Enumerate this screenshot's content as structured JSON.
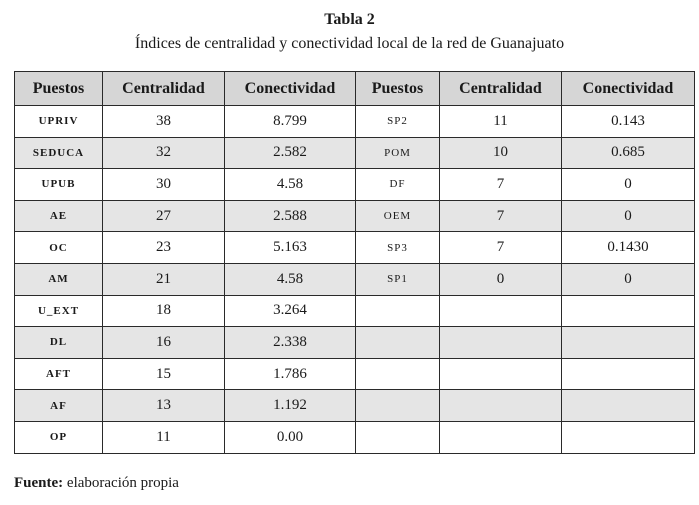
{
  "caption": {
    "title": "Tabla 2",
    "subtitle": "Índices de centralidad y conectividad local de la red de Guanajuato"
  },
  "table": {
    "headers": [
      "Puestos",
      "Centralidad",
      "Conectividad",
      "Puestos",
      "Centralidad",
      "Conectividad"
    ],
    "rows": [
      [
        "UPRIV",
        "38",
        "8.799",
        "SP2",
        "11",
        "0.143"
      ],
      [
        "SEDUCA",
        "32",
        "2.582",
        "POM",
        "10",
        "0.685"
      ],
      [
        "UPUB",
        "30",
        "4.58",
        "DF",
        "7",
        "0"
      ],
      [
        "AE",
        "27",
        "2.588",
        "OEM",
        "7",
        "0"
      ],
      [
        "OC",
        "23",
        "5.163",
        "SP3",
        "7",
        "0.1430"
      ],
      [
        "AM",
        "21",
        "4.58",
        "SP1",
        "0",
        "0"
      ],
      [
        "U_EXT",
        "18",
        "3.264",
        "",
        "",
        ""
      ],
      [
        "DL",
        "16",
        "2.338",
        "",
        "",
        ""
      ],
      [
        "AFT",
        "15",
        "1.786",
        "",
        "",
        ""
      ],
      [
        "AF",
        "13",
        "1.192",
        "",
        "",
        ""
      ],
      [
        "OP",
        "11",
        "0.00",
        "",
        "",
        ""
      ]
    ]
  },
  "source": {
    "label": "Fuente:",
    "text": " elaboración propia"
  }
}
